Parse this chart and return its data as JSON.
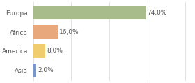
{
  "categories": [
    "Europa",
    "Africa",
    "America",
    "Asia"
  ],
  "values": [
    74.0,
    16.0,
    8.0,
    2.0
  ],
  "bar_colors": [
    "#a8bb8a",
    "#e8a87c",
    "#f0cc6e",
    "#7b96cb"
  ],
  "background_color": "#ffffff",
  "text_color": "#555555",
  "bar_height": 0.72,
  "xlim": [
    0,
    105
  ],
  "label_fontsize": 6.5,
  "tick_fontsize": 6.5,
  "grid_color": "#dddddd",
  "grid_interval": 25
}
